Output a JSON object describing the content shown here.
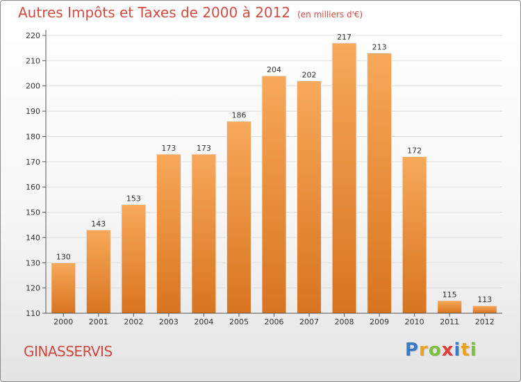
{
  "header": {
    "title": "Autres Impôts et Taxes de 2000 à 2012",
    "subtitle": "(en milliers d'€)"
  },
  "footer": {
    "commune": "GINASSERVIS",
    "logo_letters": [
      "P",
      "r",
      "o",
      "x",
      "i",
      "t",
      "i"
    ],
    "logo_colors": [
      "#3a78c8",
      "#f0a020",
      "#7cc13a",
      "#e23b3b",
      "#3a78c8",
      "#f0a020",
      "#7cc13a"
    ]
  },
  "colors": {
    "bar_top": "#f7a95a",
    "bar_bottom": "#d87420",
    "title": "#d14a40",
    "grid": "#dddddd"
  },
  "chart_data": {
    "type": "bar",
    "categories": [
      "2000",
      "2001",
      "2002",
      "2003",
      "2004",
      "2005",
      "2006",
      "2007",
      "2008",
      "2009",
      "2010",
      "2011",
      "2012"
    ],
    "values": [
      130,
      143,
      153,
      173,
      173,
      186,
      204,
      202,
      217,
      213,
      172,
      115,
      113
    ],
    "ylim": [
      110,
      220
    ],
    "yticks": [
      110,
      120,
      130,
      140,
      150,
      160,
      170,
      180,
      190,
      200,
      210,
      220
    ],
    "grid": true,
    "data_labels": true
  }
}
